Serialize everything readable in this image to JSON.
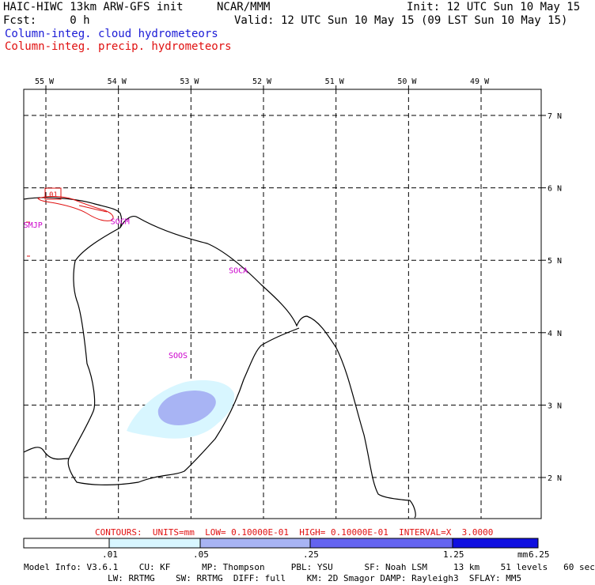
{
  "header": {
    "model_title": "HAIC-HIWC 13km ARW-GFS init",
    "org": "NCAR/MMM",
    "init": "Init: 12 UTC Sun 10 May 15",
    "fcst": "Fcst:     0 h",
    "valid": "Valid: 12 UTC Sun 10 May 15 (09 LST Sun 10 May 15)",
    "legend_cloud": "Column-integ. cloud hydrometeors",
    "legend_precip": "Column-integ. precip. hydrometeors"
  },
  "map": {
    "lon_labels": [
      "55 W",
      "54 W",
      "53 W",
      "52 W",
      "51 W",
      "50 W",
      "49 W"
    ],
    "lat_labels": [
      "7 N",
      "6 N",
      "5 N",
      "4 N",
      "3 N",
      "2 N"
    ],
    "stations": [
      {
        "id": "SMJP",
        "lon": -55.2,
        "lat": 5.45
      },
      {
        "id": "SOCM",
        "lon": -54.0,
        "lat": 5.5
      },
      {
        "id": "SOCA",
        "lon": -52.37,
        "lat": 4.82
      },
      {
        "id": "SOOS",
        "lon": -53.2,
        "lat": 3.65
      }
    ],
    "box_label": "01",
    "colors": {
      "grid": "#000000",
      "coast": "#000000",
      "precip": "#e01010",
      "cloud_light": "#d8f6ff",
      "cloud_mid": "#a8b4f4",
      "station": "#cc00cc"
    }
  },
  "contours_line": "CONTOURS:  UNITS=mm  LOW= 0.10000E-01  HIGH= 0.10000E-01  INTERVAL=X  3.0000",
  "colorbar": {
    "ticks": [
      ".01",
      ".05",
      ".25",
      "1.25",
      "6.25"
    ],
    "units": "mm",
    "colors": [
      "#ffffff",
      "#d8f6ff",
      "#a8b4f4",
      "#6464f0",
      "#1010e0"
    ]
  },
  "model_info": {
    "line1": "Model Info: V3.6.1    CU: KF      MP: Thompson     PBL: YSU      SF: Noah LSM     13 km    51 levels   60 sec",
    "line2": "                LW: RRTMG    SW: RRTMG  DIFF: full    KM: 2D Smagor DAMP: Rayleigh3  SFLAY: MM5"
  }
}
